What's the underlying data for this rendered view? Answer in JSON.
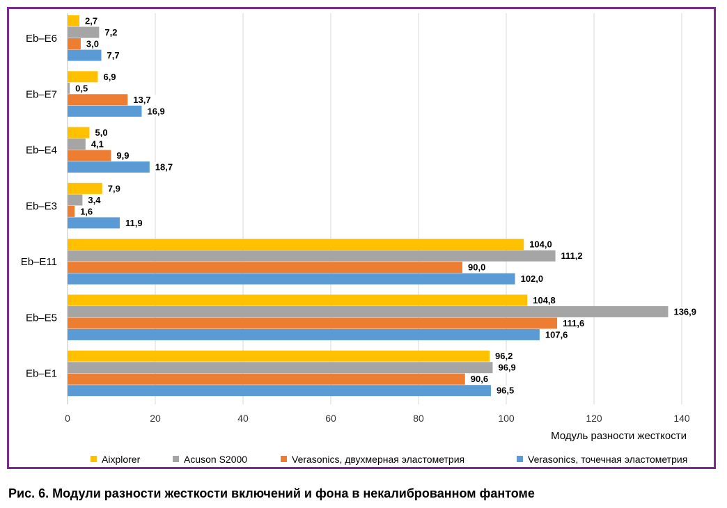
{
  "caption": "Рис. 6. Модули разности жесткости включений и фона в некалиброванном фантоме",
  "chart_data": {
    "type": "bar",
    "orientation": "horizontal",
    "categories": [
      "Eb–E6",
      "Eb–E7",
      "Eb–E4",
      "Eb–E3",
      "Eb–E11",
      "Eb–E5",
      "Eb–E1"
    ],
    "series": [
      {
        "name": "Aixplorer",
        "color": "#ffc000",
        "values": [
          2.7,
          6.9,
          5.0,
          7.9,
          104.0,
          104.8,
          96.2
        ],
        "labels": [
          "2,7",
          "6,9",
          "5,0",
          "7,9",
          "104,0",
          "104,8",
          "96,2"
        ]
      },
      {
        "name": "Acuson S2000",
        "color": "#a5a5a5",
        "values": [
          7.2,
          0.5,
          4.1,
          3.4,
          111.2,
          136.9,
          96.9
        ],
        "labels": [
          "7,2",
          "0,5",
          "4,1",
          "3,4",
          "111,2",
          "136,9",
          "96,9"
        ]
      },
      {
        "name": "Verasonics, двухмерная эластометрия",
        "color": "#ed7d31",
        "values": [
          3.0,
          13.7,
          9.9,
          1.6,
          90.0,
          111.6,
          90.6
        ],
        "labels": [
          "3,0",
          "13,7",
          "9,9",
          "1,6",
          "90,0",
          "111,6",
          "90,6"
        ]
      },
      {
        "name": "Verasonics, точечная эластометрия",
        "color": "#5b9bd5",
        "values": [
          7.7,
          16.9,
          18.7,
          11.9,
          102.0,
          107.6,
          96.5
        ],
        "labels": [
          "7,7",
          "16,9",
          "18,7",
          "11,9",
          "102,0",
          "107,6",
          "96,5"
        ]
      }
    ],
    "xlim": [
      0,
      140
    ],
    "xticks": [
      "0",
      "20",
      "40",
      "60",
      "80",
      "100",
      "120",
      "140"
    ],
    "xlabel": "Модуль разности жесткости",
    "ylabel": "",
    "grid": true,
    "legend_position": "bottom"
  }
}
